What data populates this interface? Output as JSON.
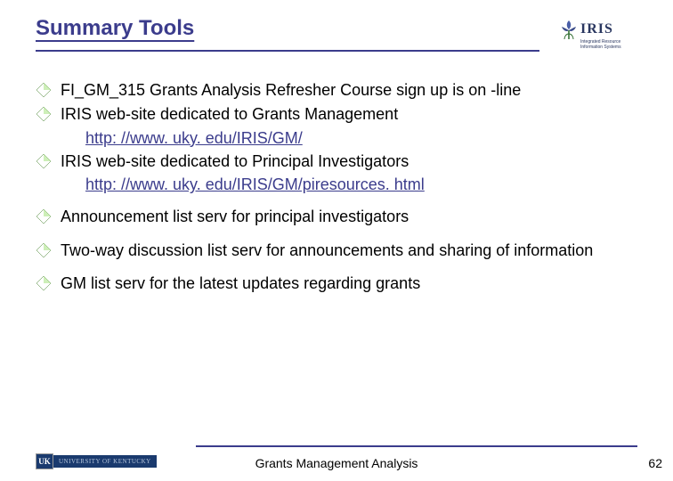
{
  "header": {
    "title": "Summary Tools",
    "logo_word": "IRIS",
    "logo_sub": "Integrated Resource Information Systems"
  },
  "bullets": [
    {
      "text": "FI_GM_315 Grants Analysis Refresher Course sign up is on -line",
      "link": null,
      "spaced": false
    },
    {
      "text": "IRIS web-site dedicated to Grants Management",
      "link": "http: //www. uky. edu/IRIS/GM/",
      "spaced": false
    },
    {
      "text": "IRIS web-site dedicated to Principal Investigators",
      "link": "http: //www. uky. edu/IRIS/GM/piresources. html",
      "spaced": false
    },
    {
      "text": "Announcement list serv for principal investigators",
      "link": null,
      "spaced": true
    },
    {
      "text": "Two-way discussion list serv for announcements and sharing of information",
      "link": null,
      "spaced": true
    },
    {
      "text": "GM list serv for the latest updates regarding grants",
      "link": null,
      "spaced": true
    }
  ],
  "footer": {
    "uk_badge": "UK",
    "uk_text": "UNIVERSITY OF KENTUCKY",
    "title": "Grants Management Analysis",
    "page": "62"
  },
  "colors": {
    "accent": "#3b3c8c",
    "bullet_fill": "#6fbf4b",
    "bullet_edge": "#3a7a1f",
    "link": "#3b3c8c"
  }
}
